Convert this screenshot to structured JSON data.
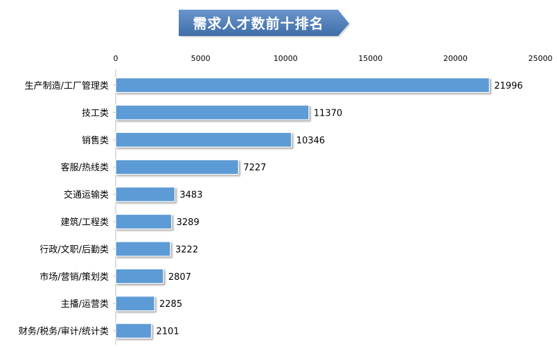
{
  "chart_data": {
    "type": "bar",
    "orientation": "horizontal",
    "title": "需求人才数前十排名",
    "categories": [
      "生产制造/工厂管理类",
      "技工类",
      "销售类",
      "客服/热线类",
      "交通运输类",
      "建筑/工程类",
      "行政/文职/后勤类",
      "市场/营销/策划类",
      "主播/运营类",
      "财务/税务/审计/统计类"
    ],
    "values": [
      21996,
      11370,
      10346,
      7227,
      3483,
      3289,
      3222,
      2807,
      2285,
      2101
    ],
    "xlim": [
      0,
      25000
    ],
    "xticks": [
      0,
      5000,
      10000,
      15000,
      20000,
      25000
    ],
    "xaxis_position": "top",
    "grid": false,
    "legend": "none",
    "data_labels": true
  },
  "colors": {
    "bar": "#5b9bd5",
    "banner": "#4f81bd",
    "banner_text": "#ffffff",
    "text": "#000000",
    "axis": "#bfbfbf"
  }
}
